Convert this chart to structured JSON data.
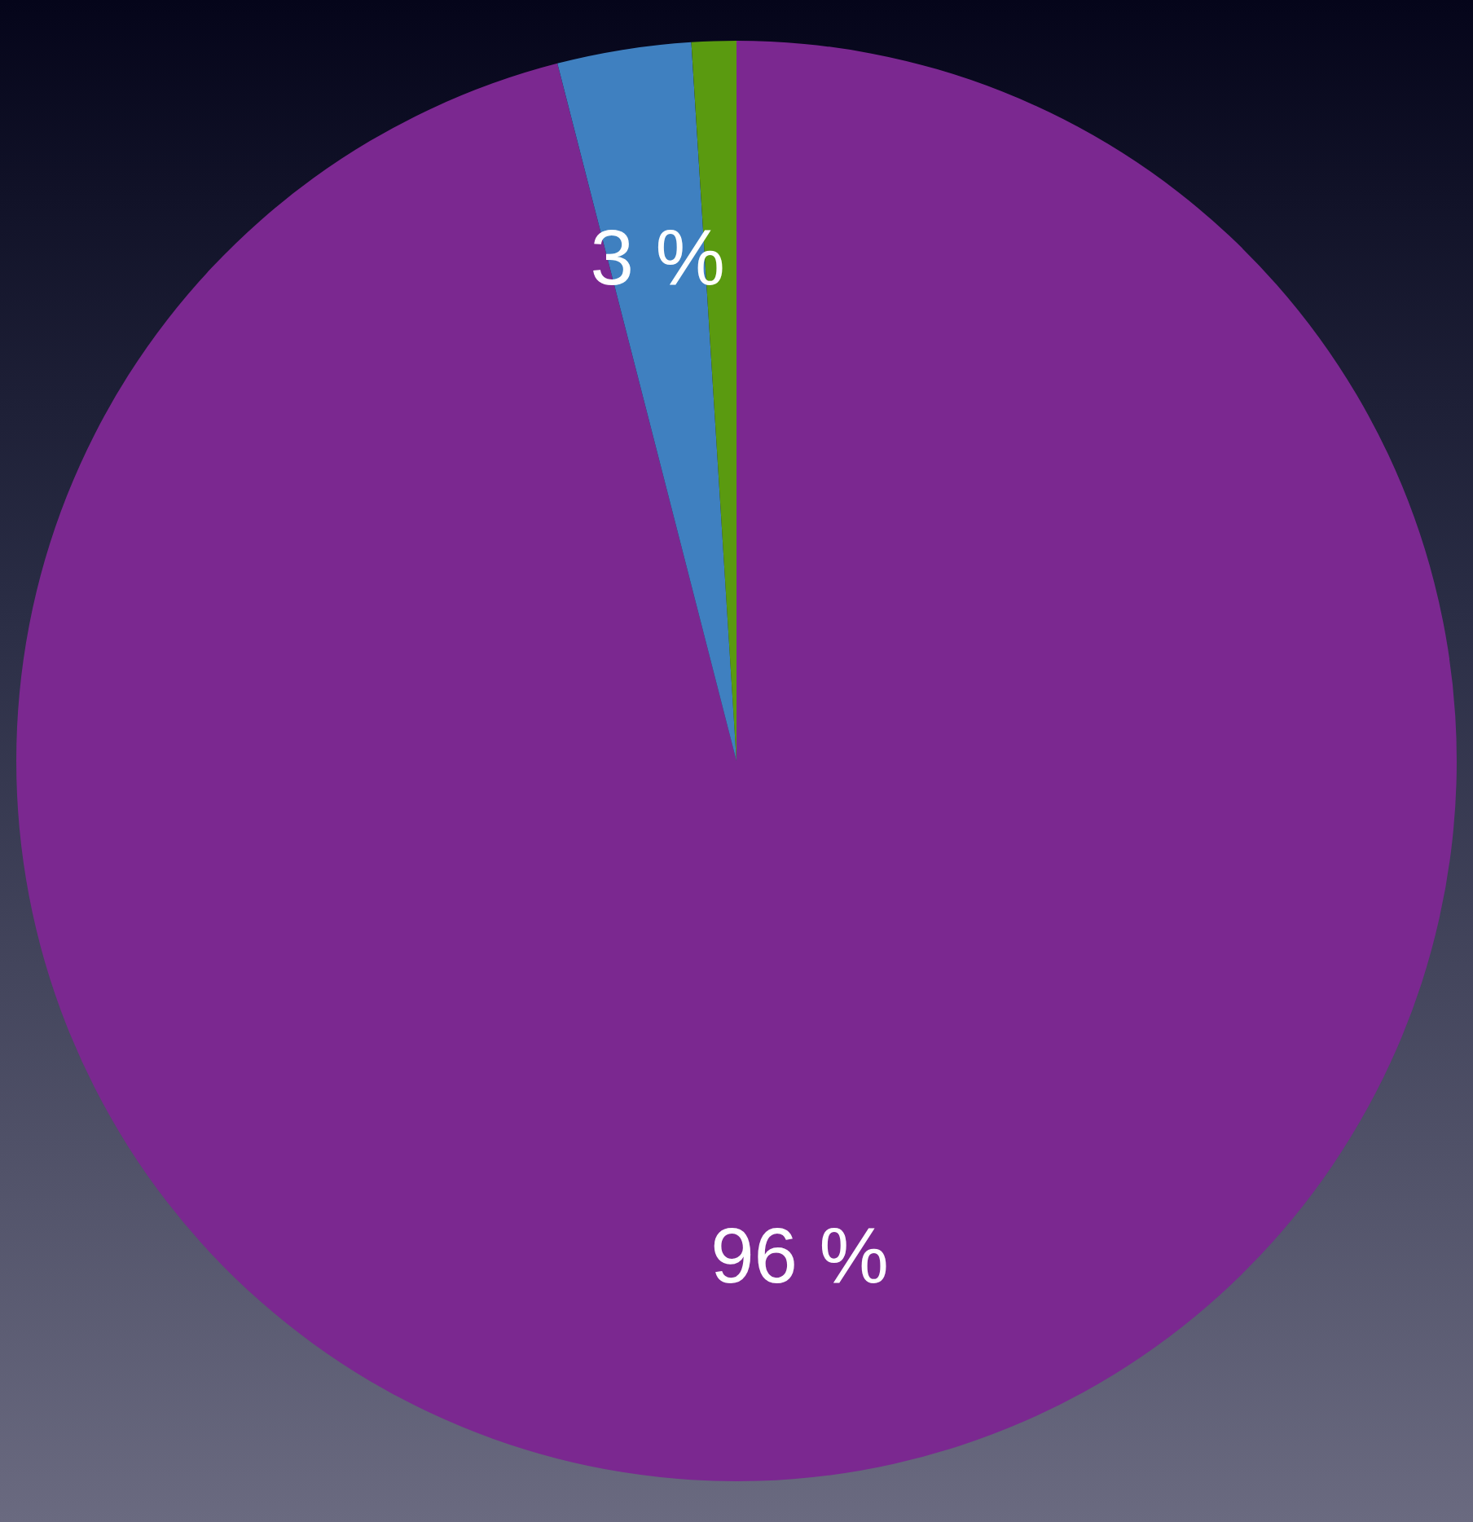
{
  "chart_data": {
    "type": "pie",
    "categories": [
      null,
      null,
      null
    ],
    "values": [
      96,
      3,
      1
    ],
    "colors": [
      "#7b2890",
      "#3f80c0",
      "#5a9a10"
    ],
    "value_labels": [
      "96 %",
      "3 %",
      null
    ]
  }
}
